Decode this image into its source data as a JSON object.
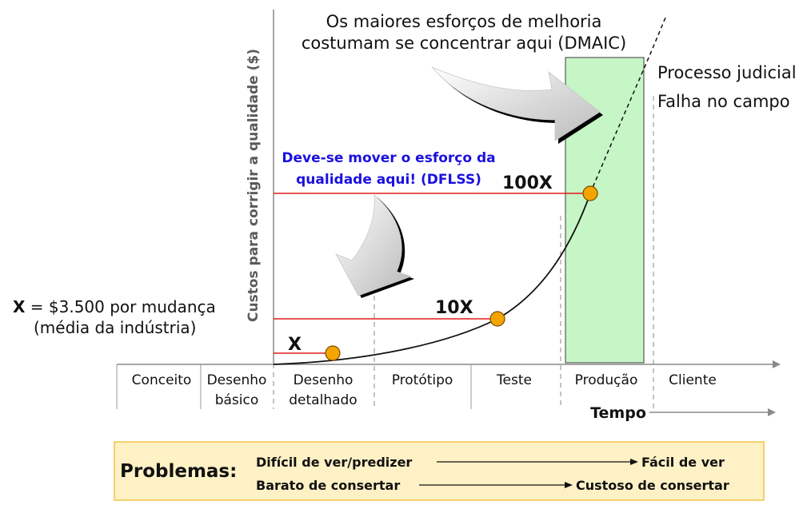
{
  "annotation_top": {
    "line1": "Os maiores esforços de melhoria",
    "line2": "costumam se concentrar aqui (DMAIC)"
  },
  "annotation_mid": {
    "line1": "Deve-se mover o esforço da",
    "line2": "qualidade aqui! (DFLSS)",
    "color": "#1a10e0"
  },
  "right_labels": {
    "line1": "Processo judicial",
    "line2": "Falha no campo"
  },
  "y_axis_label": "Custos para corrigir a qualidade ($)",
  "x_axis_label": "Tempo",
  "x_note": {
    "bold": "X",
    "rest": " = $3.500 por mudança",
    "line2": "(média da indústria)"
  },
  "levels": [
    {
      "label": "X"
    },
    {
      "label": "10X"
    },
    {
      "label": "100X"
    }
  ],
  "phases": [
    {
      "line1": "Conceito",
      "line2": ""
    },
    {
      "line1": "Desenho",
      "line2": "básico"
    },
    {
      "line1": "Desenho",
      "line2": "detalhado"
    },
    {
      "line1": "Protótipo",
      "line2": ""
    },
    {
      "line1": "Teste",
      "line2": ""
    },
    {
      "line1": "Produção",
      "line2": ""
    },
    {
      "line1": "Cliente",
      "line2": ""
    }
  ],
  "problems": {
    "title": "Problemas:",
    "row1_left": "Difícil de ver/predizer",
    "row1_right": "Fácil de ver",
    "row2_left": "Barato de consertar",
    "row2_right": "Custoso de consertar"
  },
  "colors": {
    "highlight_fill": "#c6f5c6",
    "highlight_stroke": "#3a3a3a",
    "level_line": "#e41a1a",
    "point_fill": "#f5a500",
    "problems_bg": "#fdf1c5",
    "problems_border": "#f1c34a",
    "axis": "#8a8a8a"
  }
}
